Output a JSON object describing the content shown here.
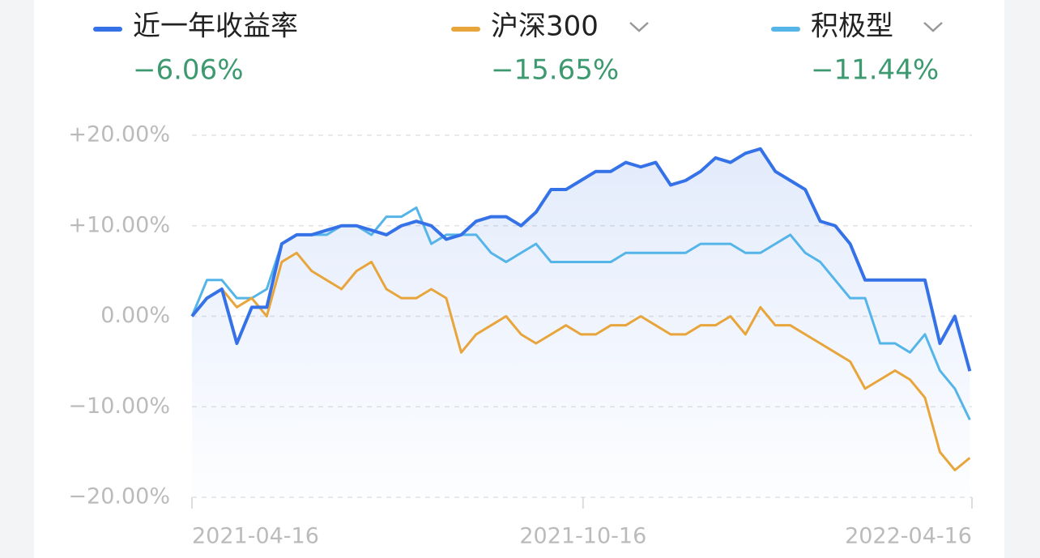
{
  "chart_data": {
    "type": "line",
    "x": [
      "2021-04-16",
      "2021-04-23",
      "2021-04-30",
      "2021-05-07",
      "2021-05-14",
      "2021-05-21",
      "2021-05-28",
      "2021-06-04",
      "2021-06-11",
      "2021-06-18",
      "2021-06-25",
      "2021-07-02",
      "2021-07-09",
      "2021-07-16",
      "2021-07-23",
      "2021-07-30",
      "2021-08-06",
      "2021-08-13",
      "2021-08-20",
      "2021-08-27",
      "2021-09-03",
      "2021-09-10",
      "2021-09-17",
      "2021-09-24",
      "2021-10-01",
      "2021-10-08",
      "2021-10-15",
      "2021-10-22",
      "2021-10-29",
      "2021-11-05",
      "2021-11-12",
      "2021-11-19",
      "2021-11-26",
      "2021-12-03",
      "2021-12-10",
      "2021-12-17",
      "2021-12-24",
      "2021-12-31",
      "2022-01-07",
      "2022-01-14",
      "2022-01-21",
      "2022-01-28",
      "2022-02-04",
      "2022-02-11",
      "2022-02-18",
      "2022-02-25",
      "2022-03-04",
      "2022-03-11",
      "2022-03-18",
      "2022-03-25",
      "2022-04-01",
      "2022-04-08",
      "2022-04-15"
    ],
    "series": [
      {
        "name": "近一年收益率",
        "color": "#3572e8",
        "return_label": "−6.06%",
        "values": [
          0,
          2,
          3,
          -3,
          1,
          1,
          8,
          9,
          9,
          9.5,
          10,
          10,
          9.5,
          9,
          10,
          10.5,
          10,
          8.5,
          9,
          10.5,
          11,
          11,
          10,
          11.5,
          14,
          14,
          15,
          16,
          16,
          17,
          16.5,
          17,
          14.5,
          15,
          16,
          17.5,
          17,
          18,
          18.5,
          16,
          15,
          14,
          10.5,
          10,
          8,
          4,
          4,
          4,
          4,
          4,
          -3,
          0,
          -6.06
        ]
      },
      {
        "name": "沪深300",
        "color": "#e8a53c",
        "return_label": "−15.65%",
        "values": [
          0,
          2,
          3,
          1,
          2,
          0,
          6,
          7,
          5,
          4,
          3,
          5,
          6,
          3,
          2,
          2,
          3,
          2,
          -4,
          -2,
          -1,
          0,
          -2,
          -3,
          -2,
          -1,
          -2,
          -2,
          -1,
          -1,
          0,
          -1,
          -2,
          -2,
          -1,
          -1,
          0,
          -2,
          1,
          -1,
          -1,
          -2,
          -3,
          -4,
          -5,
          -8,
          -7,
          -6,
          -7,
          -9,
          -15,
          -17,
          -15.65
        ]
      },
      {
        "name": "积极型",
        "color": "#55b4e8",
        "return_label": "−11.44%",
        "values": [
          0,
          4,
          4,
          2,
          2,
          3,
          8,
          9,
          9,
          9,
          10,
          10,
          9,
          11,
          11,
          12,
          8,
          9,
          9,
          9,
          7,
          6,
          7,
          8,
          6,
          6,
          6,
          6,
          6,
          7,
          7,
          7,
          7,
          7,
          8,
          8,
          8,
          7,
          7,
          8,
          9,
          7,
          6,
          4,
          2,
          2,
          -3,
          -3,
          -4,
          -2,
          -6,
          -8,
          -11.44
        ]
      }
    ],
    "xlim": [
      "2021-04-16",
      "2022-04-16"
    ],
    "xticks": [
      "2021-04-16",
      "2021-10-16",
      "2022-04-16"
    ],
    "ylim": [
      -20,
      20
    ],
    "yticks": [
      {
        "value": 20,
        "label": "+20.00%"
      },
      {
        "value": 10,
        "label": "+10.00%"
      },
      {
        "value": 0,
        "label": "0.00%"
      },
      {
        "value": -10,
        "label": "−10.00%"
      },
      {
        "value": -20,
        "label": "−20.00%"
      }
    ],
    "grid": true
  }
}
